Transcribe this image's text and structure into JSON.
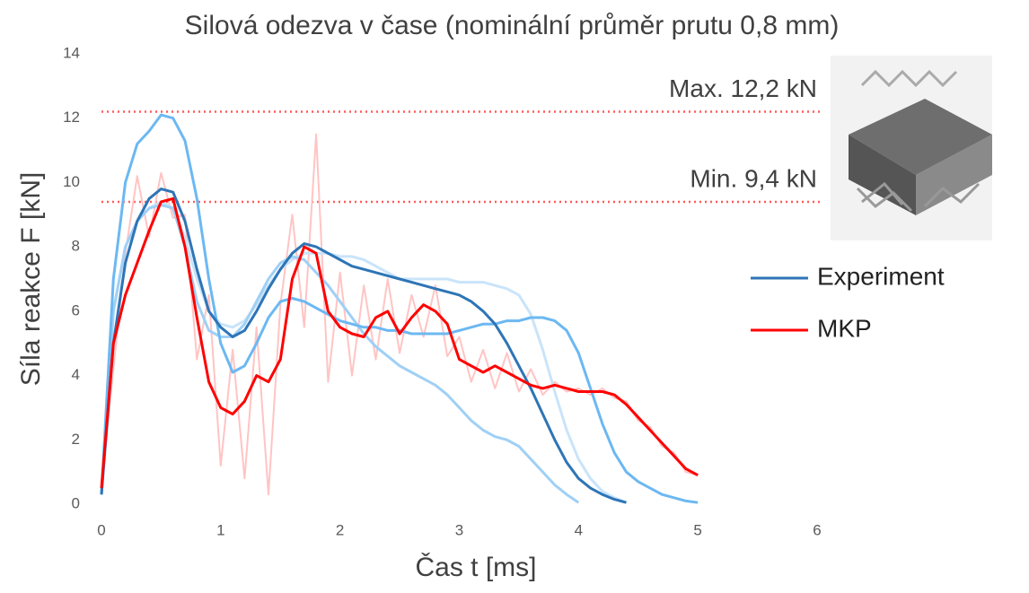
{
  "chart_data": {
    "type": "line",
    "title": "Silová odezva v čase (nominální průměr prutu 0,8 mm)",
    "x_label": "Čas t [ms]",
    "y_label": "Síla reakce F [kN]",
    "x": [
      0,
      0.1,
      0.2,
      0.3,
      0.4,
      0.5,
      0.6,
      0.7,
      0.8,
      0.9,
      1.0,
      1.1,
      1.2,
      1.3,
      1.4,
      1.5,
      1.6,
      1.7,
      1.8,
      1.9,
      2.0,
      2.1,
      2.2,
      2.3,
      2.4,
      2.5,
      2.6,
      2.7,
      2.8,
      2.9,
      3.0,
      3.1,
      3.2,
      3.3,
      3.4,
      3.5,
      3.6,
      3.7,
      3.8,
      3.9,
      4.0,
      4.1,
      4.2,
      4.3,
      4.4,
      4.5,
      4.6,
      4.7,
      4.8,
      4.9,
      5.0
    ],
    "series": [
      {
        "color": "#ffc4c4",
        "width": 2,
        "values": [
          0.5,
          4.2,
          7.8,
          10.2,
          8.3,
          10.3,
          8.9,
          9.0,
          4.5,
          6.5,
          1.2,
          4.8,
          0.8,
          5.5,
          0.3,
          6.2,
          9.0,
          5.5,
          11.5,
          3.8,
          7.2,
          4.0,
          6.8,
          4.5,
          7.0,
          4.7,
          6.5,
          5.2,
          6.8,
          4.6,
          5.2,
          3.8,
          4.8,
          3.6,
          4.7,
          3.5,
          4.2,
          3.4,
          3.8,
          3.5,
          3.6,
          3.4,
          3.6,
          3.3,
          3.2,
          2.6,
          2.4,
          1.8,
          1.6,
          1.0,
          0.9
        ]
      },
      {
        "color": "#c9e4fa",
        "width": 3,
        "values": [
          0.3,
          6,
          8,
          8.8,
          9.2,
          9.4,
          9.2,
          8.3,
          7.0,
          6.0,
          5.6,
          5.5,
          5.7,
          6.2,
          6.8,
          7.3,
          7.6,
          7.8,
          7.8,
          7.8,
          7.7,
          7.7,
          7.6,
          7.4,
          7.2,
          7.0,
          7.0,
          7.0,
          7.0,
          7.0,
          6.9,
          6.9,
          6.9,
          6.8,
          6.7,
          6.5,
          5.9,
          4.8,
          3.5,
          2.3,
          1.4,
          0.8,
          0.4,
          0.2,
          0.05,
          null,
          null,
          null,
          null,
          null,
          null
        ]
      },
      {
        "color": "#9fd0f6",
        "width": 3,
        "values": [
          0.3,
          6,
          8,
          8.8,
          9.2,
          9.3,
          9.2,
          8.0,
          6.3,
          5.4,
          5.2,
          5.2,
          5.6,
          6.3,
          7.0,
          7.5,
          7.7,
          7.6,
          7.2,
          6.8,
          6.3,
          5.8,
          5.3,
          4.9,
          4.6,
          4.3,
          4.1,
          3.9,
          3.7,
          3.4,
          3.0,
          2.6,
          2.3,
          2.1,
          2.0,
          1.8,
          1.4,
          1.0,
          0.6,
          0.3,
          0.05,
          null,
          null,
          null,
          null,
          null,
          null,
          null,
          null,
          null,
          null
        ]
      },
      {
        "color": "#6cb8f2",
        "width": 3,
        "values": [
          0.3,
          7,
          10,
          11.2,
          11.6,
          12.1,
          12.0,
          11.3,
          9.5,
          7,
          5,
          4.1,
          4.3,
          5.0,
          5.8,
          6.3,
          6.4,
          6.3,
          6.1,
          5.9,
          5.7,
          5.6,
          5.5,
          5.5,
          5.4,
          5.4,
          5.3,
          5.3,
          5.3,
          5.3,
          5.4,
          5.5,
          5.6,
          5.6,
          5.7,
          5.7,
          5.8,
          5.8,
          5.7,
          5.4,
          4.7,
          3.6,
          2.5,
          1.6,
          1.0,
          0.7,
          0.5,
          0.3,
          0.2,
          0.1,
          0.05
        ]
      },
      {
        "name": "Experiment",
        "color": "#2e75b6",
        "width": 3,
        "values": [
          0.3,
          5,
          7.5,
          8.8,
          9.5,
          9.8,
          9.7,
          8.8,
          7.3,
          6.0,
          5.5,
          5.2,
          5.4,
          6.0,
          6.7,
          7.3,
          7.8,
          8.1,
          8.0,
          7.8,
          7.6,
          7.4,
          7.3,
          7.2,
          7.1,
          7.0,
          6.9,
          6.8,
          6.7,
          6.6,
          6.5,
          6.3,
          6.0,
          5.6,
          5.0,
          4.3,
          3.6,
          2.8,
          2.0,
          1.3,
          0.8,
          0.5,
          0.3,
          0.15,
          0.05,
          null,
          null,
          null,
          null,
          null,
          null
        ]
      },
      {
        "name": "MKP",
        "color": "#ff0000",
        "width": 3,
        "values": [
          0.5,
          5.0,
          6.5,
          7.5,
          8.5,
          9.4,
          9.5,
          8.0,
          5.8,
          3.8,
          3.0,
          2.8,
          3.2,
          4.0,
          3.8,
          4.5,
          7.0,
          8.0,
          7.8,
          6.0,
          5.5,
          5.3,
          5.2,
          5.8,
          6.0,
          5.3,
          5.8,
          6.2,
          6.0,
          5.6,
          4.5,
          4.3,
          4.1,
          4.3,
          4.1,
          3.9,
          3.7,
          3.6,
          3.7,
          3.6,
          3.5,
          3.5,
          3.5,
          3.4,
          3.1,
          2.7,
          2.3,
          1.9,
          1.5,
          1.1,
          0.9
        ]
      }
    ],
    "reference_lines": [
      {
        "value": 12.2,
        "label": "Max. 12,2 kN",
        "color": "#ff5b5b"
      },
      {
        "value": 9.4,
        "label": "Min. 9,4 kN",
        "color": "#ff5b5b"
      }
    ],
    "xlim": [
      0,
      6
    ],
    "xticks": [
      0,
      1,
      2,
      3,
      4,
      5,
      6
    ],
    "ylim": [
      0,
      14
    ],
    "yticks": [
      0,
      2,
      4,
      6,
      8,
      10,
      12,
      14
    ],
    "grid": false,
    "legend": "right"
  }
}
